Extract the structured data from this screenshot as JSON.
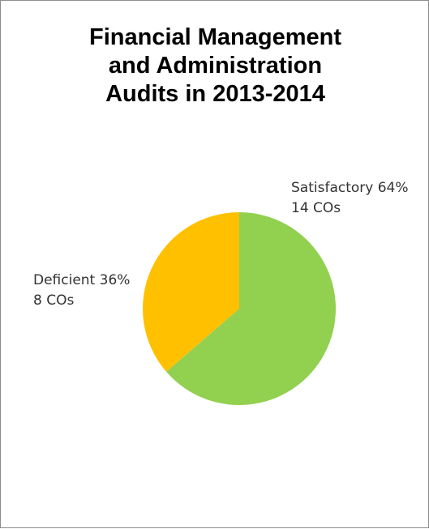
{
  "chart_data": {
    "type": "pie",
    "title": [
      "Financial Management",
      "and Administration",
      "Audits in 2013-2014"
    ],
    "slices": [
      {
        "name": "Satisfactory",
        "percent": "64%",
        "count_label": "14 COs",
        "value": 14,
        "color": "#92d050"
      },
      {
        "name": "Deficient",
        "percent": "36%",
        "count_label": "8 COs",
        "value": 8,
        "color": "#ffc000"
      }
    ],
    "legend": "none",
    "start_angle_deg": 0,
    "direction": "clockwise"
  }
}
